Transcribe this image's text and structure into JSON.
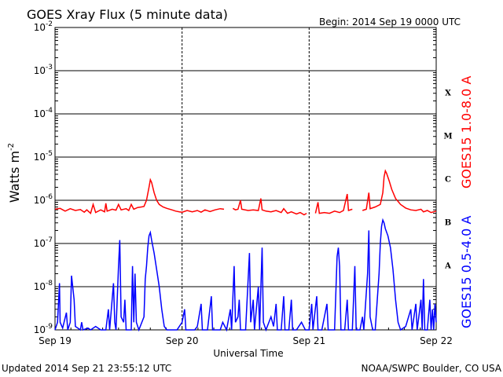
{
  "header": {
    "title": "GOES Xray Flux (5 minute data)",
    "begin": "Begin:  2014 Sep 19 0000 UTC"
  },
  "footer": {
    "updated": "Updated 2014 Sep 21 23:55:12 UTC",
    "credit": "NOAA/SWPC Boulder, CO USA"
  },
  "chart_data": {
    "type": "line",
    "title": "GOES Xray Flux (5 minute data)",
    "xlabel": "Universal Time",
    "ylabel_text": "Watts m",
    "ylabel_exp": "-2",
    "y_scale": "log",
    "ylim": [
      1e-09,
      0.01
    ],
    "xlim": [
      0,
      3
    ],
    "grid": true,
    "x_ticks": [
      {
        "value": 0,
        "label": "Sep 19"
      },
      {
        "value": 1,
        "label": "Sep 20"
      },
      {
        "value": 2,
        "label": "Sep 21"
      },
      {
        "value": 3,
        "label": "Sep 22"
      }
    ],
    "y_ticks": [
      {
        "exp": -9,
        "base": "10",
        "sup": "-9"
      },
      {
        "exp": -8,
        "base": "10",
        "sup": "-8"
      },
      {
        "exp": -7,
        "base": "10",
        "sup": "-7"
      },
      {
        "exp": -6,
        "base": "10",
        "sup": "-6"
      },
      {
        "exp": -5,
        "base": "10",
        "sup": "-5"
      },
      {
        "exp": -4,
        "base": "10",
        "sup": "-4"
      },
      {
        "exp": -3,
        "base": "10",
        "sup": "-3"
      },
      {
        "exp": -2,
        "base": "10",
        "sup": "-2"
      }
    ],
    "flare_classes": [
      {
        "label": "A",
        "exp": -7.5
      },
      {
        "label": "B",
        "exp": -6.5
      },
      {
        "label": "C",
        "exp": -5.5
      },
      {
        "label": "M",
        "exp": -4.5
      },
      {
        "label": "X",
        "exp": -3.5
      }
    ],
    "series": [
      {
        "name": "GOES15 1.0-8.0 A",
        "color": "#ff0000",
        "points": [
          [
            0.0,
            6.2e-07
          ],
          [
            0.04,
            6.5e-07
          ],
          [
            0.08,
            5.6e-07
          ],
          [
            0.12,
            6.4e-07
          ],
          [
            0.16,
            5.8e-07
          ],
          [
            0.2,
            6.1e-07
          ],
          [
            0.23,
            5.3e-07
          ],
          [
            0.25,
            6e-07
          ],
          [
            0.28,
            5e-07
          ],
          [
            0.3,
            8e-07
          ],
          [
            0.32,
            5.2e-07
          ],
          [
            0.36,
            6e-07
          ],
          [
            0.39,
            5.4e-07
          ],
          [
            0.4,
            8.5e-07
          ],
          [
            0.41,
            5.6e-07
          ],
          [
            0.45,
            6.2e-07
          ],
          [
            0.48,
            5.9e-07
          ],
          [
            0.5,
            8e-07
          ],
          [
            0.52,
            6e-07
          ],
          [
            0.56,
            6.4e-07
          ],
          [
            0.58,
            5.8e-07
          ],
          [
            0.6,
            8e-07
          ],
          [
            0.62,
            6.2e-07
          ],
          [
            0.65,
            6.8e-07
          ],
          [
            0.68,
            7e-07
          ],
          [
            0.7,
            7.2e-07
          ],
          [
            0.72,
            1e-06
          ],
          [
            0.74,
            2e-06
          ],
          [
            0.75,
            3e-06
          ],
          [
            0.76,
            2.6e-06
          ],
          [
            0.78,
            1.5e-06
          ],
          [
            0.8,
            1e-06
          ],
          [
            0.82,
            8e-07
          ],
          [
            0.85,
            7e-07
          ],
          [
            0.88,
            6.5e-07
          ],
          [
            0.92,
            6e-07
          ],
          [
            0.95,
            5.6e-07
          ],
          [
            0.98,
            5.4e-07
          ],
          [
            1.0,
            5.3e-07
          ],
          [
            1.04,
            5.8e-07
          ],
          [
            1.08,
            5.4e-07
          ],
          [
            1.12,
            5.8e-07
          ],
          [
            1.15,
            5.3e-07
          ],
          [
            1.18,
            6e-07
          ],
          [
            1.22,
            5.5e-07
          ],
          [
            1.26,
            6e-07
          ],
          [
            1.3,
            6.4e-07
          ],
          [
            1.33,
            6.2e-07
          ],
          [
            1.35,
            null
          ],
          [
            1.4,
            6.5e-07
          ],
          [
            1.42,
            6e-07
          ],
          [
            1.44,
            6.2e-07
          ],
          [
            1.46,
            1e-06
          ],
          [
            1.47,
            6.2e-07
          ],
          [
            1.52,
            5.8e-07
          ],
          [
            1.56,
            6e-07
          ],
          [
            1.6,
            5.8e-07
          ],
          [
            1.62,
            1.1e-06
          ],
          [
            1.63,
            6e-07
          ],
          [
            1.66,
            5.6e-07
          ],
          [
            1.7,
            5.4e-07
          ],
          [
            1.74,
            5.8e-07
          ],
          [
            1.78,
            5.2e-07
          ],
          [
            1.8,
            6.4e-07
          ],
          [
            1.83,
            5e-07
          ],
          [
            1.86,
            5.4e-07
          ],
          [
            1.9,
            4.8e-07
          ],
          [
            1.93,
            5.2e-07
          ],
          [
            1.96,
            4.6e-07
          ],
          [
            1.98,
            5e-07
          ],
          [
            1.99,
            null
          ],
          [
            2.05,
            5e-07
          ],
          [
            2.07,
            9e-07
          ],
          [
            2.08,
            5e-07
          ],
          [
            2.12,
            5.2e-07
          ],
          [
            2.16,
            5e-07
          ],
          [
            2.2,
            5.6e-07
          ],
          [
            2.24,
            5.2e-07
          ],
          [
            2.27,
            5.8e-07
          ],
          [
            2.3,
            1.4e-06
          ],
          [
            2.31,
            5.8e-07
          ],
          [
            2.34,
            6.2e-07
          ],
          [
            2.36,
            null
          ],
          [
            2.42,
            5.8e-07
          ],
          [
            2.45,
            6.2e-07
          ],
          [
            2.47,
            1.5e-06
          ],
          [
            2.48,
            6.4e-07
          ],
          [
            2.52,
            7e-07
          ],
          [
            2.56,
            8e-07
          ],
          [
            2.58,
            1.5e-06
          ],
          [
            2.59,
            3.5e-06
          ],
          [
            2.6,
            4.8e-06
          ],
          [
            2.61,
            4.2e-06
          ],
          [
            2.63,
            2.8e-06
          ],
          [
            2.65,
            1.8e-06
          ],
          [
            2.68,
            1.1e-06
          ],
          [
            2.72,
            8e-07
          ],
          [
            2.76,
            6.6e-07
          ],
          [
            2.8,
            6e-07
          ],
          [
            2.84,
            5.8e-07
          ],
          [
            2.88,
            6.2e-07
          ],
          [
            2.9,
            5.4e-07
          ],
          [
            2.93,
            5.8e-07
          ],
          [
            2.96,
            5.2e-07
          ],
          [
            3.0,
            5.6e-07
          ]
        ]
      },
      {
        "name": "GOES15 0.5-4.0 A",
        "color": "#0000ff",
        "points": [
          [
            0.0,
            1e-09
          ],
          [
            0.02,
            1.5e-09
          ],
          [
            0.035,
            1.2e-08
          ],
          [
            0.04,
            1.5e-09
          ],
          [
            0.06,
            1.1e-09
          ],
          [
            0.09,
            2.5e-09
          ],
          [
            0.1,
            1e-09
          ],
          [
            0.12,
            1.5e-09
          ],
          [
            0.13,
            1.8e-08
          ],
          [
            0.15,
            5e-09
          ],
          [
            0.16,
            1.2e-09
          ],
          [
            0.2,
            1e-09
          ],
          [
            0.21,
            1.5e-09
          ],
          [
            0.22,
            1e-09
          ],
          [
            0.26,
            1.1e-09
          ],
          [
            0.28,
            1e-09
          ],
          [
            0.32,
            1.2e-09
          ],
          [
            0.36,
            1e-09
          ],
          [
            0.4,
            1e-09
          ],
          [
            0.42,
            3e-09
          ],
          [
            0.43,
            1e-09
          ],
          [
            0.46,
            1.2e-08
          ],
          [
            0.47,
            1.5e-09
          ],
          [
            0.48,
            1e-09
          ],
          [
            0.5,
            3e-08
          ],
          [
            0.51,
            1.2e-07
          ],
          [
            0.52,
            2e-09
          ],
          [
            0.54,
            1.5e-09
          ],
          [
            0.55,
            5e-09
          ],
          [
            0.56,
            1e-09
          ],
          [
            0.6,
            1e-09
          ],
          [
            0.61,
            3e-08
          ],
          [
            0.62,
            1.5e-09
          ],
          [
            0.63,
            2e-08
          ],
          [
            0.64,
            1.5e-09
          ],
          [
            0.66,
            1e-09
          ],
          [
            0.7,
            2e-09
          ],
          [
            0.71,
            1.5e-08
          ],
          [
            0.72,
            3e-08
          ],
          [
            0.73,
            8e-08
          ],
          [
            0.74,
            1.5e-07
          ],
          [
            0.75,
            1.8e-07
          ],
          [
            0.76,
            1.2e-07
          ],
          [
            0.78,
            6e-08
          ],
          [
            0.8,
            2.5e-08
          ],
          [
            0.82,
            1e-08
          ],
          [
            0.84,
            3e-09
          ],
          [
            0.86,
            1.2e-09
          ],
          [
            0.88,
            1e-09
          ],
          [
            0.92,
            1e-09
          ],
          [
            0.96,
            1e-09
          ],
          [
            1.0,
            1.5e-09
          ],
          [
            1.02,
            3e-09
          ],
          [
            1.03,
            1e-09
          ],
          [
            1.06,
            1e-09
          ],
          [
            1.1,
            1e-09
          ],
          [
            1.12,
            1.2e-09
          ],
          [
            1.15,
            4e-09
          ],
          [
            1.16,
            1e-09
          ],
          [
            1.2,
            1e-09
          ],
          [
            1.23,
            6e-09
          ],
          [
            1.24,
            1e-09
          ],
          [
            1.3,
            1e-09
          ],
          [
            1.32,
            1.5e-09
          ],
          [
            1.35,
            1e-09
          ],
          [
            1.38,
            3e-09
          ],
          [
            1.39,
            1e-09
          ],
          [
            1.41,
            3e-08
          ],
          [
            1.42,
            1.5e-09
          ],
          [
            1.44,
            2e-09
          ],
          [
            1.45,
            5e-09
          ],
          [
            1.46,
            1e-09
          ],
          [
            1.5,
            1e-09
          ],
          [
            1.53,
            6e-08
          ],
          [
            1.54,
            1.5e-09
          ],
          [
            1.56,
            5e-09
          ],
          [
            1.57,
            1e-09
          ],
          [
            1.6,
            1e-08
          ],
          [
            1.61,
            1e-09
          ],
          [
            1.63,
            8e-08
          ],
          [
            1.64,
            1.5e-09
          ],
          [
            1.66,
            1e-09
          ],
          [
            1.7,
            2e-09
          ],
          [
            1.72,
            1.2e-09
          ],
          [
            1.74,
            4e-09
          ],
          [
            1.75,
            1e-09
          ],
          [
            1.78,
            1e-09
          ],
          [
            1.8,
            6e-09
          ],
          [
            1.81,
            1e-09
          ],
          [
            1.84,
            1e-09
          ],
          [
            1.86,
            5e-09
          ],
          [
            1.87,
            1e-09
          ],
          [
            1.9,
            1e-09
          ],
          [
            1.94,
            1.5e-09
          ],
          [
            1.97,
            1e-09
          ],
          [
            2.0,
            1e-09
          ],
          [
            2.02,
            4e-09
          ],
          [
            2.03,
            1e-09
          ],
          [
            2.06,
            6e-09
          ],
          [
            2.07,
            1e-09
          ],
          [
            2.1,
            1e-09
          ],
          [
            2.14,
            4e-09
          ],
          [
            2.15,
            1e-09
          ],
          [
            2.2,
            1e-09
          ],
          [
            2.22,
            5e-08
          ],
          [
            2.23,
            8e-08
          ],
          [
            2.24,
            3e-08
          ],
          [
            2.25,
            1e-09
          ],
          [
            2.28,
            1e-09
          ],
          [
            2.3,
            5e-09
          ],
          [
            2.31,
            1e-09
          ],
          [
            2.34,
            1e-09
          ],
          [
            2.36,
            3e-08
          ],
          [
            2.37,
            1e-09
          ],
          [
            2.4,
            1e-09
          ],
          [
            2.42,
            2e-09
          ],
          [
            2.43,
            1e-09
          ],
          [
            2.46,
            2e-08
          ],
          [
            2.47,
            2e-07
          ],
          [
            2.48,
            2e-09
          ],
          [
            2.5,
            1e-09
          ],
          [
            2.52,
            1e-09
          ],
          [
            2.55,
            2e-08
          ],
          [
            2.56,
            1e-07
          ],
          [
            2.57,
            2.5e-07
          ],
          [
            2.58,
            3.5e-07
          ],
          [
            2.59,
            3e-07
          ],
          [
            2.6,
            2.2e-07
          ],
          [
            2.62,
            1.5e-07
          ],
          [
            2.64,
            8e-08
          ],
          [
            2.66,
            2.5e-08
          ],
          [
            2.68,
            5e-09
          ],
          [
            2.7,
            1.5e-09
          ],
          [
            2.72,
            1e-09
          ],
          [
            2.76,
            1.2e-09
          ],
          [
            2.8,
            3e-09
          ],
          [
            2.81,
            1e-09
          ],
          [
            2.84,
            4e-09
          ],
          [
            2.85,
            1e-09
          ],
          [
            2.88,
            5e-09
          ],
          [
            2.89,
            1e-09
          ],
          [
            2.9,
            1.5e-08
          ],
          [
            2.91,
            1e-09
          ],
          [
            2.93,
            1e-09
          ],
          [
            2.95,
            5e-09
          ],
          [
            2.96,
            1e-09
          ],
          [
            2.97,
            3e-09
          ],
          [
            2.98,
            1e-09
          ],
          [
            2.99,
            4e-09
          ],
          [
            3.0,
            1.5e-09
          ]
        ]
      }
    ]
  }
}
